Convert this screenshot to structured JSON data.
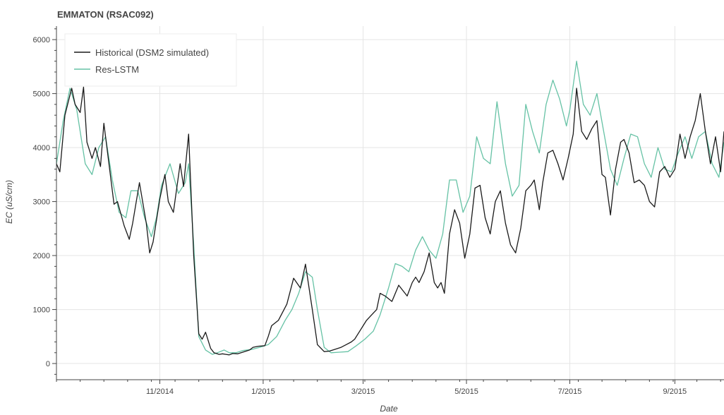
{
  "chart_data": {
    "type": "line",
    "title": "EMMATON (RSAC092)",
    "xlabel": "Date",
    "ylabel": "EC (uS/cm)",
    "ylim": [
      -300,
      6250
    ],
    "xlim": [
      "2014-09-01",
      "2015-09-30"
    ],
    "grid": true,
    "legend_position": "top-left",
    "x_ticks": [
      {
        "date": "2014-11-01",
        "label": "11/2014"
      },
      {
        "date": "2015-01-01",
        "label": "1/2015"
      },
      {
        "date": "2015-03-01",
        "label": "3/2015"
      },
      {
        "date": "2015-05-01",
        "label": "5/2015"
      },
      {
        "date": "2015-07-01",
        "label": "7/2015"
      },
      {
        "date": "2015-09-01",
        "label": "9/2015"
      }
    ],
    "y_ticks": [
      0,
      1000,
      2000,
      3000,
      4000,
      5000,
      6000
    ],
    "series": [
      {
        "name": "Historical (DSM2 simulated)",
        "color": "#1a1a1a",
        "x": [
          "2014-09-01",
          "2014-09-03",
          "2014-09-06",
          "2014-09-10",
          "2014-09-12",
          "2014-09-15",
          "2014-09-17",
          "2014-09-19",
          "2014-09-22",
          "2014-09-24",
          "2014-09-27",
          "2014-09-29",
          "2014-10-03",
          "2014-10-05",
          "2014-10-07",
          "2014-10-11",
          "2014-10-14",
          "2014-10-16",
          "2014-10-20",
          "2014-10-24",
          "2014-10-26",
          "2014-10-28",
          "2014-11-01",
          "2014-11-04",
          "2014-11-06",
          "2014-11-09",
          "2014-11-13",
          "2014-11-15",
          "2014-11-18",
          "2014-11-21",
          "2014-11-24",
          "2014-11-26",
          "2014-11-28",
          "2014-12-01",
          "2014-12-03",
          "2014-12-06",
          "2014-12-08",
          "2014-12-10",
          "2014-12-12",
          "2014-12-14",
          "2014-12-17",
          "2014-12-19",
          "2014-12-24",
          "2014-12-26",
          "2014-12-29",
          "2015-01-02",
          "2015-01-04",
          "2015-01-06",
          "2015-01-10",
          "2015-01-15",
          "2015-01-19",
          "2015-01-23",
          "2015-01-26",
          "2015-01-30",
          "2015-02-02",
          "2015-02-06",
          "2015-02-09",
          "2015-02-12",
          "2015-02-16",
          "2015-02-19",
          "2015-02-22",
          "2015-02-24",
          "2015-02-27",
          "2015-03-01",
          "2015-03-03",
          "2015-03-06",
          "2015-03-09",
          "2015-03-11",
          "2015-03-14",
          "2015-03-18",
          "2015-03-22",
          "2015-03-27",
          "2015-03-30",
          "2015-04-01",
          "2015-04-03",
          "2015-04-06",
          "2015-04-09",
          "2015-04-12",
          "2015-04-14",
          "2015-04-16",
          "2015-04-18",
          "2015-04-21",
          "2015-04-24",
          "2015-04-27",
          "2015-04-30",
          "2015-05-03",
          "2015-05-06",
          "2015-05-09",
          "2015-05-12",
          "2015-05-15",
          "2015-05-18",
          "2015-05-21",
          "2015-05-24",
          "2015-05-27",
          "2015-05-30",
          "2015-06-02",
          "2015-06-05",
          "2015-06-08",
          "2015-06-10",
          "2015-06-13",
          "2015-06-15",
          "2015-06-18",
          "2015-06-21",
          "2015-06-24",
          "2015-06-27",
          "2015-06-30",
          "2015-07-03",
          "2015-07-05",
          "2015-07-08",
          "2015-07-11",
          "2015-07-14",
          "2015-07-17",
          "2015-07-20",
          "2015-07-22",
          "2015-07-25",
          "2015-07-28",
          "2015-07-31",
          "2015-08-02",
          "2015-08-05",
          "2015-08-08",
          "2015-08-11",
          "2015-08-14",
          "2015-08-17",
          "2015-08-20",
          "2015-08-23",
          "2015-08-26",
          "2015-08-29",
          "2015-09-01",
          "2015-09-04",
          "2015-09-07",
          "2015-09-10",
          "2015-09-13",
          "2015-09-16",
          "2015-09-19",
          "2015-09-22",
          "2015-09-25",
          "2015-09-28",
          "2015-09-30"
        ],
        "values": [
          3700,
          3550,
          4600,
          5100,
          4800,
          4650,
          5120,
          4100,
          3800,
          4000,
          3650,
          4450,
          3450,
          2950,
          3000,
          2550,
          2300,
          2600,
          3350,
          2600,
          2050,
          2250,
          3050,
          3500,
          3000,
          2800,
          3700,
          3280,
          4250,
          2000,
          550,
          450,
          580,
          280,
          200,
          170,
          180,
          170,
          160,
          185,
          180,
          200,
          250,
          300,
          320,
          330,
          500,
          700,
          800,
          1100,
          1580,
          1400,
          1840,
          1000,
          350,
          220,
          230,
          260,
          300,
          350,
          400,
          450,
          600,
          700,
          800,
          900,
          1000,
          1300,
          1250,
          1150,
          1450,
          1250,
          1500,
          1600,
          1500,
          1700,
          2050,
          1500,
          1400,
          1500,
          1300,
          2400,
          2850,
          2600,
          1950,
          2400,
          3250,
          3300,
          2700,
          2400,
          3000,
          3200,
          2600,
          2200,
          2050,
          2500,
          3200,
          3300,
          3400,
          2850,
          3350,
          3900,
          3950,
          3700,
          3400,
          3800,
          4250,
          5100,
          4300,
          4150,
          4350,
          4500,
          3500,
          3450,
          2750,
          3600,
          4100,
          4150,
          3900,
          3350,
          3400,
          3300,
          3000,
          2900,
          3550,
          3650,
          3450,
          3600,
          4250,
          3800,
          4200,
          4500,
          5000,
          4300,
          3700,
          4200,
          3550,
          4300
        ]
      },
      {
        "name": "Res-LSTM",
        "color": "#66c2a5",
        "x": [
          "2014-09-01",
          "2014-09-05",
          "2014-09-09",
          "2014-09-13",
          "2014-09-18",
          "2014-09-22",
          "2014-09-26",
          "2014-09-30",
          "2014-10-04",
          "2014-10-08",
          "2014-10-12",
          "2014-10-15",
          "2014-10-19",
          "2014-10-23",
          "2014-10-27",
          "2014-10-30",
          "2014-11-02",
          "2014-11-07",
          "2014-11-12",
          "2014-11-16",
          "2014-11-18",
          "2014-11-21",
          "2014-11-24",
          "2014-11-28",
          "2014-12-02",
          "2014-12-05",
          "2014-12-09",
          "2014-12-12",
          "2014-12-16",
          "2014-12-20",
          "2014-12-25",
          "2014-12-30",
          "2015-01-04",
          "2015-01-09",
          "2015-01-14",
          "2015-01-18",
          "2015-01-22",
          "2015-01-26",
          "2015-01-30",
          "2015-02-02",
          "2015-02-06",
          "2015-02-10",
          "2015-02-15",
          "2015-02-20",
          "2015-02-25",
          "2015-03-02",
          "2015-03-07",
          "2015-03-11",
          "2015-03-16",
          "2015-03-20",
          "2015-03-24",
          "2015-03-28",
          "2015-04-01",
          "2015-04-05",
          "2015-04-09",
          "2015-04-13",
          "2015-04-17",
          "2015-04-21",
          "2015-04-25",
          "2015-04-29",
          "2015-05-03",
          "2015-05-07",
          "2015-05-11",
          "2015-05-15",
          "2015-05-19",
          "2015-05-24",
          "2015-05-28",
          "2015-06-01",
          "2015-06-05",
          "2015-06-09",
          "2015-06-13",
          "2015-06-17",
          "2015-06-21",
          "2015-06-25",
          "2015-06-29",
          "2015-07-01",
          "2015-07-05",
          "2015-07-09",
          "2015-07-13",
          "2015-07-17",
          "2015-07-21",
          "2015-07-25",
          "2015-07-29",
          "2015-08-02",
          "2015-08-06",
          "2015-08-10",
          "2015-08-14",
          "2015-08-18",
          "2015-08-22",
          "2015-08-26",
          "2015-08-30",
          "2015-09-03",
          "2015-09-07",
          "2015-09-11",
          "2015-09-15",
          "2015-09-19",
          "2015-09-23",
          "2015-09-27",
          "2015-09-30"
        ],
        "values": [
          3700,
          4500,
          5100,
          4700,
          3700,
          3500,
          4000,
          4200,
          3400,
          2800,
          2700,
          3200,
          3200,
          2700,
          2350,
          2700,
          3300,
          3700,
          3150,
          3350,
          3700,
          2200,
          500,
          250,
          170,
          200,
          250,
          200,
          200,
          240,
          260,
          300,
          350,
          500,
          800,
          1000,
          1300,
          1700,
          1600,
          1000,
          300,
          200,
          210,
          220,
          330,
          450,
          600,
          900,
          1400,
          1850,
          1800,
          1700,
          2100,
          2350,
          2100,
          1950,
          2400,
          3400,
          3400,
          2800,
          3100,
          4200,
          3800,
          3700,
          4850,
          3700,
          3100,
          3300,
          4800,
          4300,
          3900,
          4800,
          5250,
          4900,
          4400,
          4700,
          5600,
          4800,
          4600,
          5000,
          4300,
          3600,
          3300,
          3800,
          4250,
          4200,
          3700,
          3450,
          4000,
          3600,
          3550,
          3900,
          4200,
          3800,
          4200,
          4300,
          3700,
          3450,
          4100
        ]
      }
    ]
  }
}
